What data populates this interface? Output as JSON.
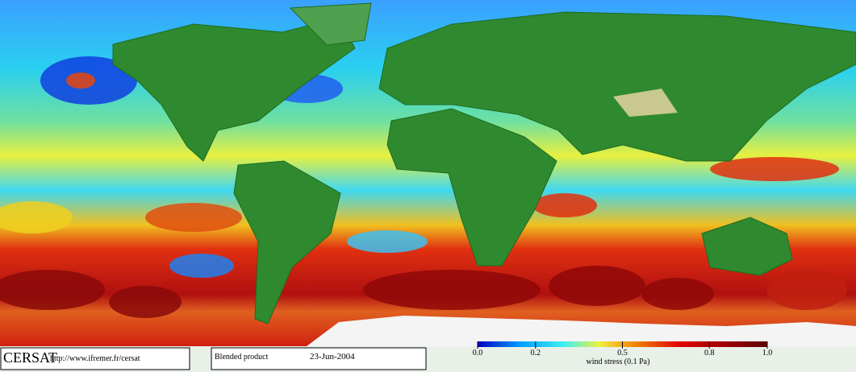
{
  "footer": {
    "logo": "CERSAT",
    "url": "http://www.ifremer.fr/cersat",
    "product": "Blended product",
    "date": "23-Jun-2004"
  },
  "colorbar": {
    "lim": [
      0,
      1
    ],
    "ticks": [
      {
        "value": 0,
        "label": "0.0"
      },
      0.2,
      0.5,
      0.8,
      {
        "value": 1,
        "label": "1.0"
      }
    ],
    "label": "wind stress (0.1 Pa)"
  }
}
